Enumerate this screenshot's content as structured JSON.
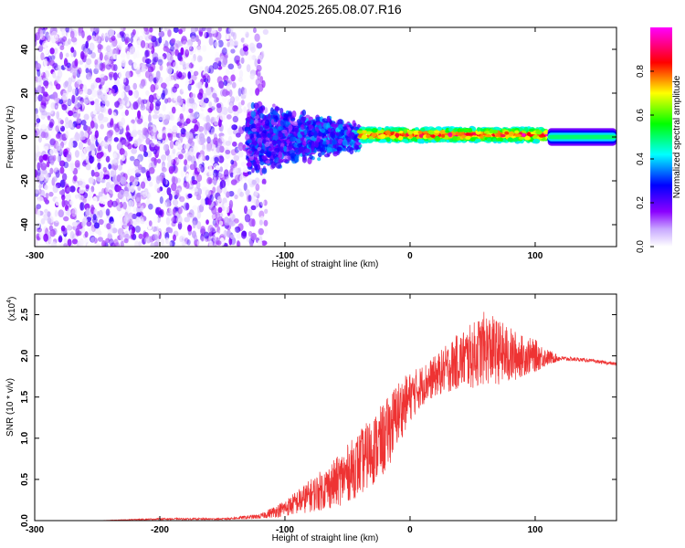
{
  "title": "GN04.2025.265.08.07.R16",
  "chart_data": [
    {
      "type": "heatmap",
      "xlabel": "Height of straight line (km)",
      "ylabel": "Frequency (Hz)",
      "xlim": [
        -300,
        165
      ],
      "ylim": [
        -50,
        50
      ],
      "xticks": [
        -300,
        -200,
        -100,
        0,
        100
      ],
      "yticks": [
        -40,
        -20,
        0,
        20,
        40
      ],
      "colorbar": {
        "label": "Normalized spectral amplitude",
        "range": [
          0,
          1
        ],
        "ticks": [
          "0.0",
          "0.2",
          "0.4",
          "0.6",
          "0.8"
        ],
        "colormap": [
          "#ffffff",
          "#8b00ff",
          "#0000ff",
          "#00ffff",
          "#00ff00",
          "#ffff00",
          "#ff0000",
          "#ff00ff"
        ]
      },
      "regions": [
        {
          "x_range": [
            -300,
            -130
          ],
          "freq_range": [
            -50,
            50
          ],
          "amplitude": [
            0.0,
            0.15
          ]
        },
        {
          "x_range": [
            -130,
            -40
          ],
          "freq_center": 0,
          "freq_halfwidth": [
            15,
            5
          ],
          "amplitude": [
            0.1,
            0.35
          ]
        },
        {
          "x_range": [
            -40,
            110
          ],
          "freq_center": 1,
          "freq_halfwidth": 3,
          "amplitude": [
            0.4,
            1.0
          ]
        },
        {
          "x_range": [
            110,
            165
          ],
          "freq_center": 0,
          "freq_halfwidth": 4,
          "amplitude": [
            0.3,
            0.5
          ]
        }
      ]
    },
    {
      "type": "line",
      "xlabel": "Height of straight line (km)",
      "ylabel": "SNR (10 * v/v)",
      "y_multiplier": "(x10",
      "y_multiplier_exp": "4",
      "y_multiplier_close": ")",
      "xlim": [
        -300,
        165
      ],
      "ylim": [
        0,
        2.75
      ],
      "xticks": [
        -300,
        -200,
        -100,
        0,
        100
      ],
      "yticks": [
        "0.0",
        "0.5",
        "1.0",
        "1.5",
        "2.0",
        "2.5"
      ],
      "color": "#ee3333",
      "series": [
        {
          "x": [
            -300,
            -250,
            -200,
            -150,
            -120,
            -100,
            -80,
            -60,
            -40,
            -20,
            -10,
            0,
            10,
            20,
            30,
            40,
            50,
            60,
            70,
            80,
            90,
            100,
            110,
            120,
            140,
            165
          ],
          "y": [
            0.0,
            0.0,
            0.02,
            0.02,
            0.05,
            0.15,
            0.3,
            0.45,
            0.7,
            1.0,
            1.3,
            1.5,
            1.65,
            1.75,
            1.85,
            1.95,
            2.0,
            2.1,
            2.05,
            2.0,
            2.0,
            2.0,
            1.98,
            1.97,
            1.95,
            1.9
          ],
          "noise": [
            0.0,
            0.0,
            0.01,
            0.01,
            0.03,
            0.1,
            0.2,
            0.3,
            0.4,
            0.45,
            0.4,
            0.3,
            0.25,
            0.25,
            0.3,
            0.35,
            0.4,
            0.45,
            0.4,
            0.35,
            0.25,
            0.2,
            0.1,
            0.03,
            0.02,
            0.02
          ]
        }
      ]
    }
  ]
}
